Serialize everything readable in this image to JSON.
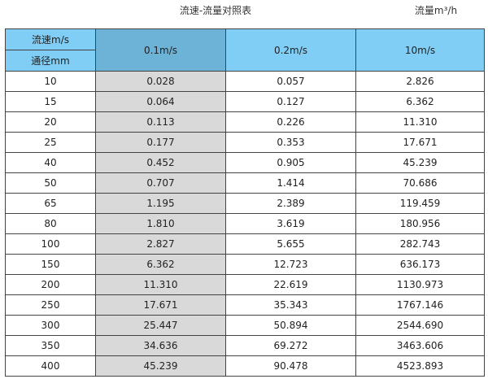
{
  "title": "流速-流量对照表",
  "unit_label": "流量m³/h",
  "colors": {
    "header": "#80cef5",
    "header_highlight": "#6db3d7",
    "highlight_column": "#d9d9d9"
  },
  "header": {
    "velocity_label": "流速m/s",
    "diameter_label": "通径mm",
    "columns": [
      "0.1m/s",
      "0.2m/s",
      "10m/s"
    ]
  },
  "rows": [
    [
      "10",
      "0.028",
      "0.057",
      "2.826"
    ],
    [
      "15",
      "0.064",
      "0.127",
      "6.362"
    ],
    [
      "20",
      "0.113",
      "0.226",
      "11.310"
    ],
    [
      "25",
      "0.177",
      "0.353",
      "17.671"
    ],
    [
      "40",
      "0.452",
      "0.905",
      "45.239"
    ],
    [
      "50",
      "0.707",
      "1.414",
      "70.686"
    ],
    [
      "65",
      "1.195",
      "2.389",
      "119.459"
    ],
    [
      "80",
      "1.810",
      "3.619",
      "180.956"
    ],
    [
      "100",
      "2.827",
      "5.655",
      "282.743"
    ],
    [
      "150",
      "6.362",
      "12.723",
      "636.173"
    ],
    [
      "200",
      "11.310",
      "22.619",
      "1130.973"
    ],
    [
      "250",
      "17.671",
      "35.343",
      "1767.146"
    ],
    [
      "300",
      "25.447",
      "50.894",
      "2544.690"
    ],
    [
      "350",
      "34.636",
      "69.272",
      "3463.606"
    ],
    [
      "400",
      "45.239",
      "90.478",
      "4523.893"
    ]
  ]
}
